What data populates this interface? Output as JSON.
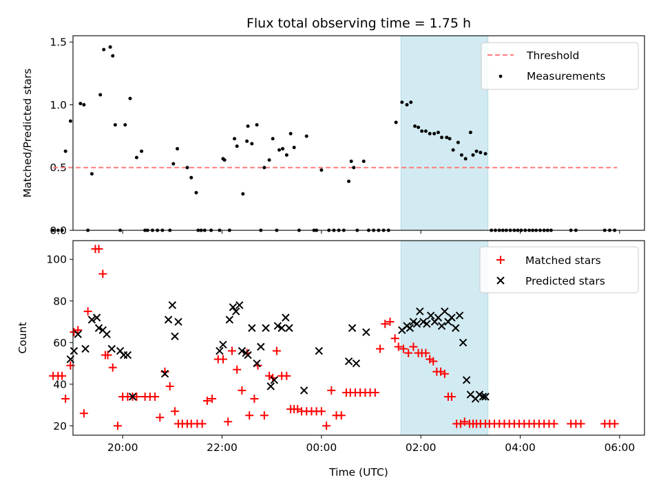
{
  "chart_data": {
    "type": "scatter",
    "title": "Flux total observing time = 1.75 h",
    "xlabel": "Time (UTC)",
    "xlim": [
      -5.0,
      6.5
    ],
    "xticks": [
      -4,
      -2,
      0,
      2,
      4,
      6
    ],
    "xtick_labels": [
      "20:00",
      "22:00",
      "00:00",
      "02:00",
      "04:00",
      "06:00"
    ],
    "highlight_span": {
      "x0": 1.6,
      "x1": 3.35
    },
    "colors": {
      "threshold": "#ff7b7b",
      "measurement": "#000000",
      "matched": "#ff0000",
      "predicted": "#000000",
      "span": "#add8e6"
    },
    "panels": [
      {
        "ylabel": "Matched/Predicted stars",
        "ylim": [
          0,
          1.55
        ],
        "yticks": [
          0.0,
          0.5,
          1.0,
          1.5
        ],
        "ytick_labels": [
          "0.0",
          "0.5",
          "1.0",
          "1.5"
        ],
        "legend": {
          "position": "top-right",
          "entries": [
            "Threshold",
            "Measurements"
          ]
        },
        "threshold": {
          "name": "Threshold",
          "y": 0.5,
          "x": [
            -5.4,
            5.95
          ]
        },
        "series": [
          {
            "name": "Measurements",
            "marker": "dot",
            "x": [
              -5.4,
              -5.3,
              -5.22,
              -5.15,
              -5.05,
              -4.85,
              -4.78,
              -4.7,
              -4.62,
              -4.45,
              -4.38,
              -4.25,
              -4.2,
              -4.15,
              -4.05,
              -3.95,
              -3.85,
              -3.72,
              -3.62,
              -3.55,
              -3.5,
              -3.4,
              -3.3,
              -3.2,
              -3.05,
              -2.98,
              -2.9,
              -2.7,
              -2.62,
              -2.52,
              -2.48,
              -2.42,
              -2.35,
              -2.22,
              -2.05,
              -1.98,
              -1.95,
              -1.85,
              -1.75,
              -1.7,
              -1.58,
              -1.5,
              -1.48,
              -1.4,
              -1.3,
              -1.22,
              -1.15,
              -1.05,
              -0.98,
              -0.9,
              -0.85,
              -0.78,
              -0.7,
              -0.62,
              -0.55,
              -0.45,
              -0.3,
              -0.15,
              -0.1,
              0.0,
              0.15,
              0.25,
              0.35,
              0.45,
              0.55,
              0.6,
              0.65,
              0.72,
              0.85,
              0.95,
              1.05,
              1.15,
              1.25,
              1.35,
              1.5,
              1.62,
              1.72,
              1.8,
              1.88,
              1.95,
              2.02,
              2.1,
              2.18,
              2.27,
              2.35,
              2.42,
              2.52,
              2.58,
              2.65,
              2.75,
              2.82,
              2.9,
              3.0,
              3.05,
              3.12,
              3.2,
              3.3,
              3.42,
              3.5,
              3.58,
              3.65,
              3.72,
              3.8,
              3.88,
              3.95,
              4.02,
              4.1,
              4.18,
              4.25,
              4.32,
              4.4,
              4.48,
              4.55,
              4.62,
              5.02,
              5.12,
              5.7,
              5.8,
              5.9
            ],
            "y": [
              0,
              0,
              0,
              0.63,
              0.87,
              1.01,
              1.0,
              0,
              0.45,
              1.08,
              1.44,
              1.46,
              1.39,
              0.84,
              0,
              0.84,
              1.05,
              0.58,
              0.63,
              0,
              0,
              0,
              0,
              0,
              0,
              0.53,
              0.65,
              0.5,
              0.42,
              0.3,
              0,
              0,
              0,
              0,
              0,
              0.57,
              0.56,
              0,
              0.73,
              0.67,
              0.29,
              0.71,
              0.83,
              0.69,
              0.84,
              0,
              0.5,
              0.56,
              0.73,
              0,
              0.64,
              0.65,
              0.6,
              0.77,
              0.66,
              0,
              0.75,
              0,
              0,
              0.48,
              0,
              0,
              0,
              0,
              0.39,
              0.55,
              0.5,
              0,
              0.55,
              0,
              0,
              0,
              0,
              0,
              0.86,
              1.02,
              1.0,
              1.02,
              0.83,
              0.82,
              0.79,
              0.79,
              0.77,
              0.77,
              0.78,
              0.74,
              0.74,
              0.73,
              0.64,
              0.7,
              0.6,
              0.57,
              0.78,
              0.6,
              0.63,
              0.62,
              0.61,
              0,
              0,
              0,
              0,
              0,
              0,
              0,
              0,
              0,
              0,
              0,
              0,
              0,
              0,
              0,
              0,
              0,
              0,
              0,
              0,
              0,
              0
            ]
          }
        ]
      },
      {
        "ylabel": "Count",
        "ylim": [
          15.5,
          109
        ],
        "yticks": [
          20,
          40,
          60,
          80,
          100
        ],
        "ytick_labels": [
          "20",
          "40",
          "60",
          "80",
          "100"
        ],
        "legend": {
          "position": "top-right",
          "entries": [
            "Matched stars",
            "Predicted stars"
          ]
        },
        "series": [
          {
            "name": "Matched stars",
            "marker": "plus",
            "x": [
              -5.4,
              -5.3,
              -5.22,
              -5.15,
              -5.05,
              -4.98,
              -4.9,
              -4.78,
              -4.7,
              -4.55,
              -4.48,
              -4.4,
              -4.35,
              -4.3,
              -4.2,
              -4.1,
              -4.0,
              -3.9,
              -3.8,
              -3.72,
              -3.55,
              -3.45,
              -3.35,
              -3.25,
              -3.15,
              -3.05,
              -2.95,
              -2.88,
              -2.8,
              -2.7,
              -2.62,
              -2.5,
              -2.4,
              -2.3,
              -2.2,
              -2.08,
              -1.98,
              -1.88,
              -1.8,
              -1.7,
              -1.6,
              -1.5,
              -1.45,
              -1.35,
              -1.28,
              -1.15,
              -1.05,
              -0.98,
              -0.9,
              -0.8,
              -0.7,
              -0.62,
              -0.55,
              -0.48,
              -0.4,
              -0.3,
              -0.2,
              -0.1,
              0.0,
              0.1,
              0.2,
              0.3,
              0.4,
              0.5,
              0.58,
              0.68,
              0.78,
              0.88,
              0.98,
              1.08,
              1.18,
              1.28,
              1.38,
              1.48,
              1.55,
              1.65,
              1.75,
              1.85,
              1.95,
              2.02,
              2.1,
              2.18,
              2.25,
              2.32,
              2.4,
              2.48,
              2.55,
              2.62,
              2.72,
              2.8,
              2.88,
              2.98,
              3.05,
              3.12,
              3.2,
              3.3,
              3.38,
              3.48,
              3.58,
              3.68,
              3.78,
              3.88,
              3.98,
              4.08,
              4.18,
              4.28,
              4.38,
              4.48,
              4.58,
              4.68,
              5.02,
              5.12,
              5.22,
              5.7,
              5.8,
              5.9
            ],
            "y": [
              44,
              44,
              44,
              33,
              49,
              65,
              66,
              26,
              75,
              105,
              105,
              93,
              54,
              54,
              48,
              20,
              34,
              34,
              34,
              34,
              34,
              34,
              34,
              24,
              46,
              39,
              27,
              21,
              21,
              21,
              21,
              21,
              21,
              32,
              33,
              52,
              52,
              22,
              56,
              47,
              37,
              55,
              25,
              33,
              49,
              25,
              44,
              43,
              56,
              44,
              44,
              28,
              28,
              28,
              27,
              27,
              27,
              27,
              27,
              20,
              37,
              25,
              25,
              36,
              36,
              36,
              36,
              36,
              36,
              36,
              57,
              69,
              70,
              62,
              58,
              57,
              55,
              58,
              55,
              55,
              55,
              52,
              51,
              46,
              46,
              45,
              34,
              34,
              21,
              21,
              22,
              21,
              21,
              21,
              21,
              21,
              21,
              21,
              21,
              21,
              21,
              21,
              21,
              21,
              21,
              21,
              21,
              21,
              21,
              21,
              21,
              21,
              21,
              21,
              21,
              21
            ]
          },
          {
            "name": "Predicted stars",
            "marker": "x",
            "x": [
              -5.05,
              -4.98,
              -4.9,
              -4.75,
              -4.62,
              -4.52,
              -4.48,
              -4.4,
              -4.32,
              -4.22,
              -4.05,
              -3.98,
              -3.9,
              -3.8,
              -3.15,
              -3.08,
              -3.0,
              -2.95,
              -2.88,
              -2.05,
              -1.98,
              -1.85,
              -1.78,
              -1.72,
              -1.65,
              -1.6,
              -1.52,
              -1.48,
              -1.4,
              -1.3,
              -1.22,
              -1.12,
              -1.02,
              -0.95,
              -0.88,
              -0.8,
              -0.72,
              -0.65,
              -0.35,
              -0.05,
              0.55,
              0.62,
              0.7,
              0.9,
              1.62,
              1.72,
              1.78,
              1.85,
              1.92,
              1.98,
              2.05,
              2.12,
              2.2,
              2.28,
              2.35,
              2.42,
              2.48,
              2.55,
              2.62,
              2.7,
              2.78,
              2.85,
              2.92,
              3.0,
              3.1,
              3.18,
              3.25,
              3.3
            ],
            "y": [
              52,
              56,
              64,
              57,
              71,
              72,
              67,
              66,
              64,
              57,
              56,
              54,
              54,
              34,
              45,
              71,
              78,
              63,
              70,
              56,
              59,
              71,
              77,
              75,
              78,
              56,
              55,
              54,
              67,
              50,
              58,
              67,
              39,
              42,
              68,
              67,
              72,
              67,
              37,
              56,
              51,
              67,
              50,
              65,
              66,
              68,
              67,
              70,
              69,
              75,
              70,
              69,
              73,
              70,
              72,
              68,
              75,
              70,
              72,
              67,
              73,
              60,
              42,
              35,
              33,
              35,
              34,
              34
            ]
          }
        ]
      }
    ]
  }
}
